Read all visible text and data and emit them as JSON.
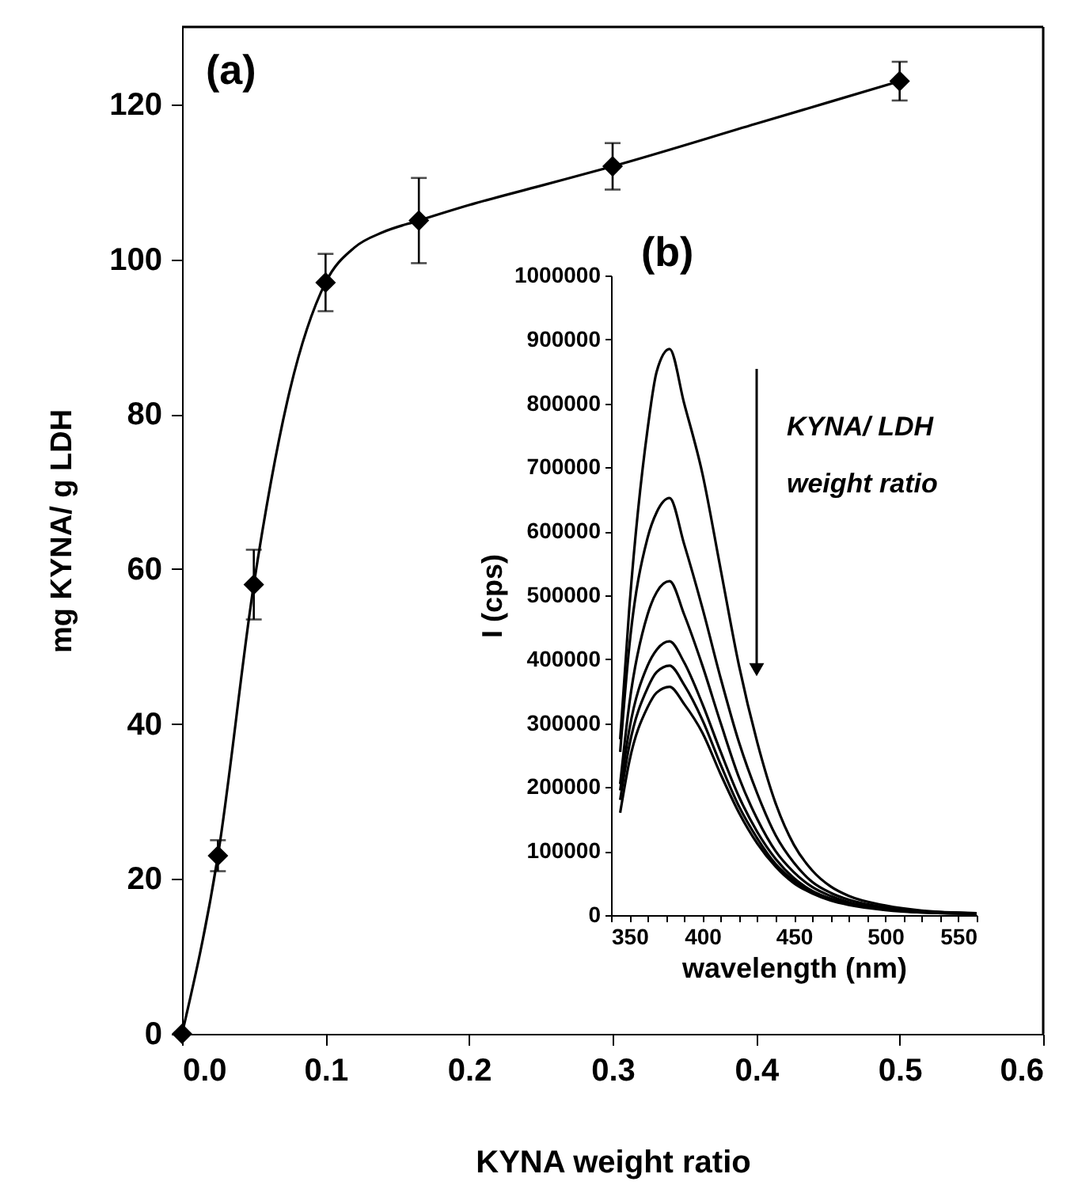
{
  "chart_data": [
    {
      "type": "scatter",
      "title": "(a)",
      "xlabel": "KYNA weight ratio",
      "ylabel": "mg KYNA/ g LDH",
      "xlim": [
        0,
        0.6
      ],
      "ylim": [
        0,
        130
      ],
      "xticks": [
        {
          "value": 0,
          "label": "0.0"
        },
        0.1,
        0.2,
        0.3,
        0.4,
        0.5,
        0.6
      ],
      "yticks": [
        0,
        20,
        40,
        60,
        80,
        100,
        120
      ],
      "grid": false,
      "marker": "diamond",
      "series": [
        {
          "type": "scatter",
          "color": "#000000",
          "x": [
            0,
            0.025,
            0.05,
            0.1,
            0.165,
            0.3,
            0.5
          ],
          "values": [
            0,
            23,
            58,
            97,
            105,
            112,
            123
          ],
          "errors": [
            null,
            2,
            4.5,
            3.7,
            5.5,
            3,
            2.5
          ]
        },
        {
          "type": "line",
          "color": "#000000",
          "marker": "none",
          "line_style": "solid",
          "x": [
            0,
            0.025,
            0.05,
            0.075,
            0.1,
            0.12,
            0.14,
            0.165,
            0.2,
            0.25,
            0.3,
            0.4,
            0.5
          ],
          "values": [
            0,
            23,
            58,
            83,
            97,
            101.5,
            103.5,
            105,
            107,
            109.5,
            112,
            117.5,
            123
          ]
        }
      ]
    },
    {
      "type": "line",
      "title": "(b)",
      "xlabel": "wavelength (nm)",
      "ylabel": "I (cps)",
      "xlim": [
        350,
        550
      ],
      "ylim": [
        0,
        1000000
      ],
      "xticks": [
        350,
        {
          "value": 360,
          "label": null
        },
        {
          "value": 370,
          "label": null
        },
        {
          "value": 380,
          "label": null
        },
        {
          "value": 390,
          "label": null
        },
        400,
        {
          "value": 410,
          "label": null
        },
        {
          "value": 420,
          "label": null
        },
        {
          "value": 430,
          "label": null
        },
        {
          "value": 440,
          "label": null
        },
        450,
        {
          "value": 460,
          "label": null
        },
        {
          "value": 470,
          "label": null
        },
        {
          "value": 480,
          "label": null
        },
        {
          "value": 490,
          "label": null
        },
        500,
        {
          "value": 510,
          "label": null
        },
        {
          "value": 520,
          "label": null
        },
        {
          "value": 530,
          "label": null
        },
        {
          "value": 540,
          "label": null
        },
        550
      ],
      "yticks": [
        0,
        100000,
        200000,
        300000,
        400000,
        500000,
        600000,
        700000,
        800000,
        900000,
        1000000
      ],
      "grid": false,
      "marker": "none",
      "line_style": "solid",
      "annotations": [
        "KYNA/ LDH weight ratio"
      ],
      "x": [
        355,
        360,
        370,
        375,
        382,
        390,
        400,
        410,
        420,
        430,
        440,
        450,
        460,
        470,
        480,
        500,
        520,
        550
      ],
      "series": [
        {
          "color": "#000000",
          "values": [
            275000,
            480000,
            760000,
            850000,
            885000,
            800000,
            690000,
            540000,
            390000,
            270000,
            175000,
            110000,
            70000,
            45000,
            30000,
            15000,
            7000,
            3000
          ]
        },
        {
          "color": "#000000",
          "values": [
            255000,
            420000,
            590000,
            630000,
            652000,
            580000,
            480000,
            370000,
            270000,
            190000,
            125000,
            82000,
            52000,
            35000,
            24000,
            12000,
            6000,
            3000
          ]
        },
        {
          "color": "#000000",
          "values": [
            205000,
            330000,
            470000,
            505000,
            522000,
            470000,
            390000,
            300000,
            215000,
            150000,
            100000,
            67000,
            44000,
            30000,
            20000,
            10000,
            5000,
            2000
          ]
        },
        {
          "color": "#000000",
          "values": [
            195000,
            290000,
            390000,
            415000,
            428000,
            395000,
            330000,
            255000,
            185000,
            130000,
            88000,
            58000,
            38000,
            26000,
            18000,
            9000,
            5000,
            2000
          ]
        },
        {
          "color": "#000000",
          "values": [
            180000,
            265000,
            355000,
            380000,
            390000,
            360000,
            305000,
            235000,
            170000,
            120000,
            80000,
            54000,
            36000,
            24000,
            17000,
            9000,
            4000,
            2000
          ]
        },
        {
          "color": "#000000",
          "values": [
            160000,
            240000,
            325000,
            348000,
            357000,
            330000,
            285000,
            220000,
            160000,
            112000,
            76000,
            50000,
            34000,
            23000,
            16000,
            8000,
            4000,
            2000
          ]
        }
      ]
    }
  ]
}
